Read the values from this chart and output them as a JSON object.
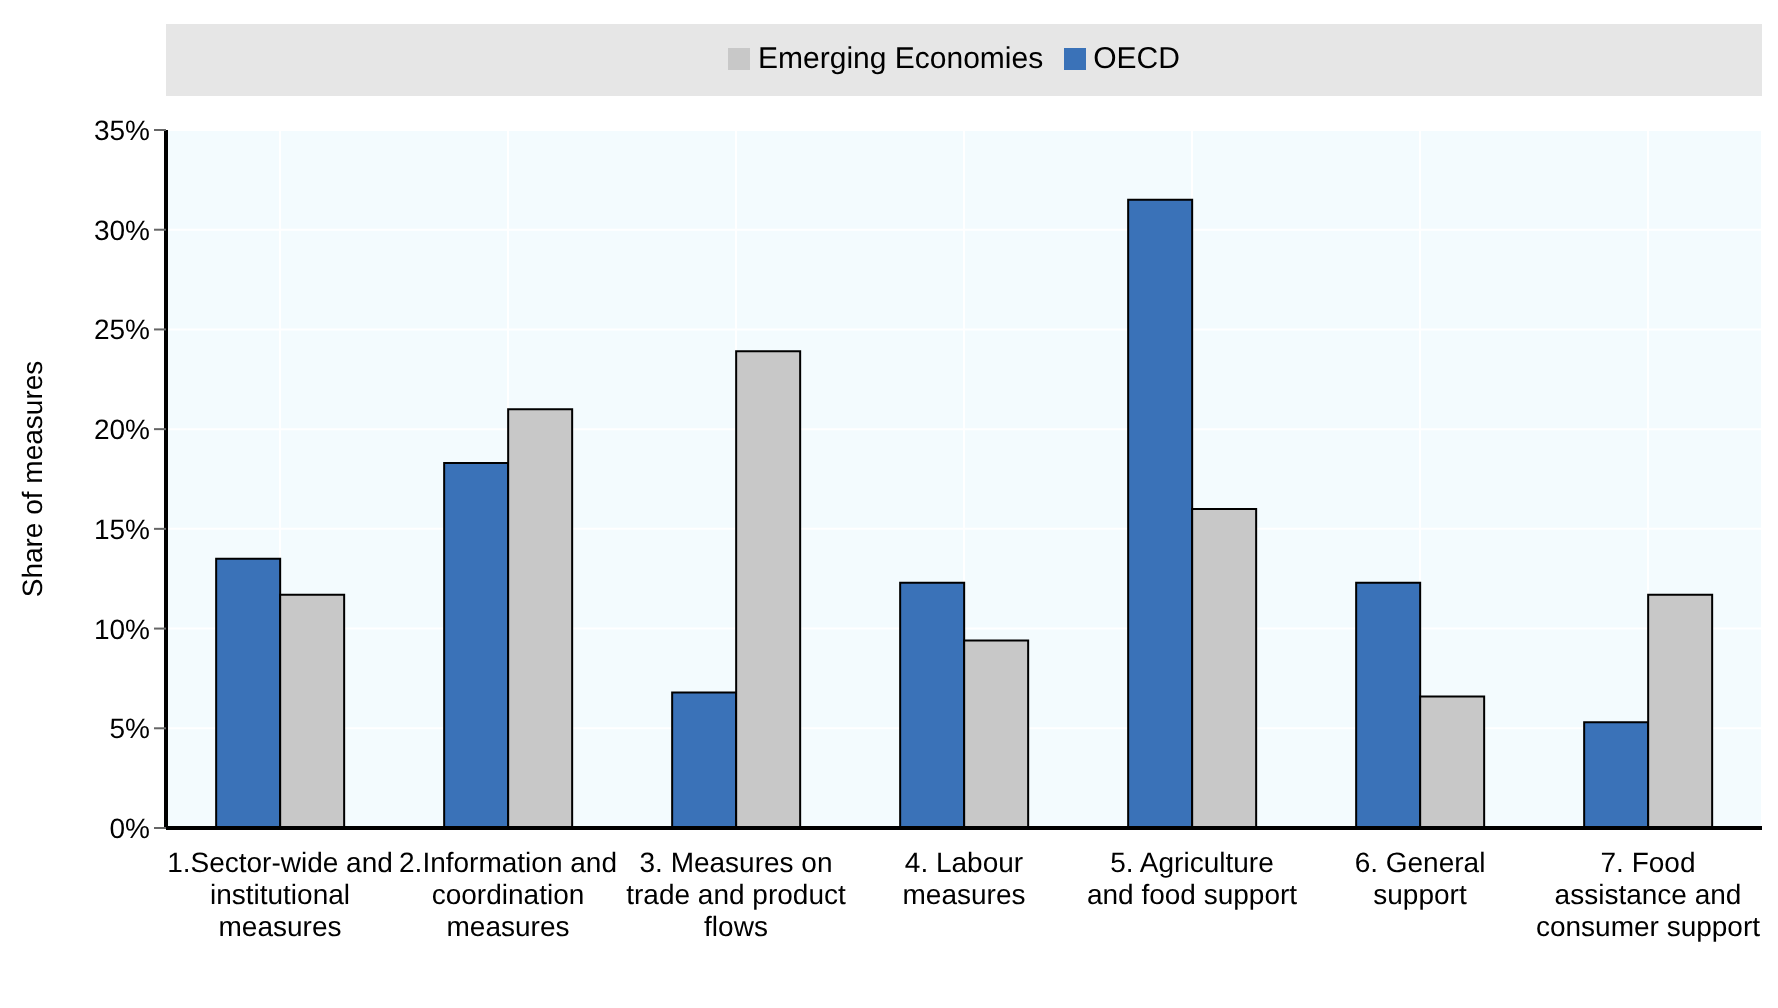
{
  "chart_data": {
    "type": "bar",
    "ylabel": "Share of measures",
    "categories": [
      "1.Sector-wide and institutional measures",
      "2.Information and coordination measures",
      "3. Measures on trade and product flows",
      "4. Labour measures",
      "5. Agriculture and food support",
      "6. General support",
      "7. Food assistance and consumer support"
    ],
    "series": [
      {
        "name": "OECD",
        "color": "#3a72b8",
        "values": [
          13.5,
          18.3,
          6.8,
          12.3,
          31.5,
          12.3,
          5.3
        ]
      },
      {
        "name": "Emerging Economies",
        "color": "#c8c8c8",
        "values": [
          11.7,
          21.0,
          23.9,
          9.4,
          16.0,
          6.6,
          11.7
        ]
      }
    ],
    "ylim": [
      0,
      35
    ],
    "yticks": [
      {
        "value": 0,
        "label": "0%"
      },
      {
        "value": 5,
        "label": "5%"
      },
      {
        "value": 10,
        "label": "10%"
      },
      {
        "value": 15,
        "label": "15%"
      },
      {
        "value": 20,
        "label": "20%"
      },
      {
        "value": 25,
        "label": "25%"
      },
      {
        "value": 30,
        "label": "30%"
      },
      {
        "value": 35,
        "label": "35%"
      }
    ],
    "grid": true,
    "legend": "top"
  }
}
